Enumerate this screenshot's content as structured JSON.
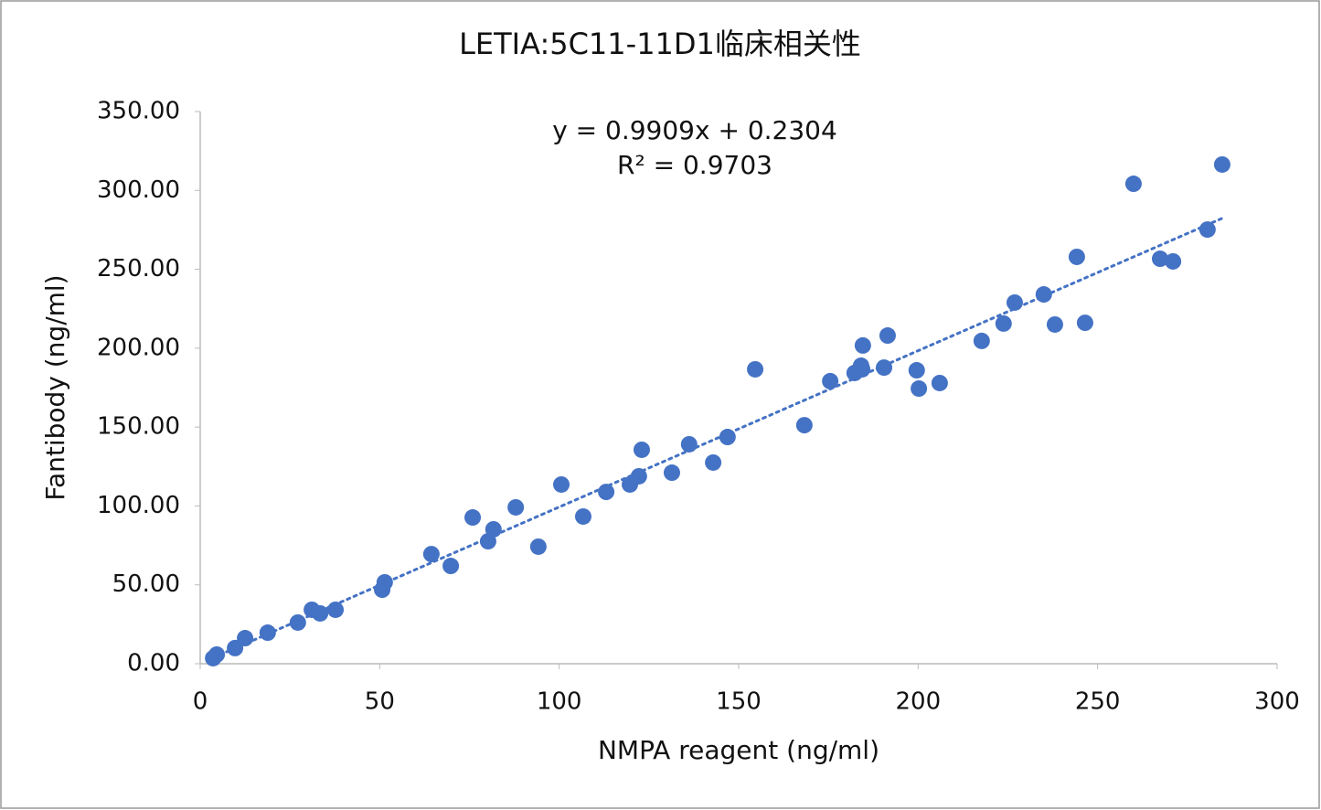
{
  "chart_data": {
    "type": "scatter",
    "title": "LETIA:5C11-11D1临床相关性",
    "x_label": "NMPA reagent (ng/ml)",
    "y_label": "Fantibody (ng/ml)",
    "color": "#4472c4",
    "xlim": [
      0,
      300
    ],
    "xticks": [
      0,
      50,
      100,
      150,
      200,
      250,
      300
    ],
    "ylim": [
      0,
      350
    ],
    "yticks": [
      {
        "value": 0,
        "label": "0.00"
      },
      {
        "value": 50,
        "label": "50.00"
      },
      {
        "value": 100,
        "label": "100.00"
      },
      {
        "value": 150,
        "label": "150.00"
      },
      {
        "value": 200,
        "label": "200.00"
      },
      {
        "value": 250,
        "label": "250.00"
      },
      {
        "value": 300,
        "label": "300.00"
      },
      {
        "value": 350,
        "label": "350.00"
      }
    ],
    "x": [
      3.6,
      4.6,
      9.7,
      12.5,
      18.8,
      27.2,
      31.1,
      33.4,
      37.7,
      50.7,
      51.4,
      64.4,
      69.8,
      75.9,
      80.2,
      81.7,
      87.9,
      94.2,
      100.6,
      106.7,
      113.1,
      119.7,
      122.2,
      123.0,
      131.4,
      136.2,
      142.9,
      146.9,
      154.6,
      168.3,
      175.5,
      182.3,
      184.1,
      184.6,
      184.4,
      190.5,
      191.5,
      199.6,
      200.2,
      206.0,
      217.7,
      223.8,
      226.9,
      235.0,
      238.1,
      244.2,
      246.5,
      260.0,
      267.4,
      271.0,
      280.6,
      284.7
    ],
    "values": [
      3.5,
      5.8,
      9.9,
      16.2,
      19.7,
      26.1,
      34.2,
      31.9,
      34.2,
      46.9,
      51.6,
      69.5,
      62.0,
      92.7,
      77.6,
      85.2,
      99.1,
      74.2,
      113.6,
      93.3,
      108.9,
      113.6,
      118.8,
      135.6,
      121.1,
      139.1,
      127.5,
      143.7,
      186.6,
      151.2,
      179.1,
      184.3,
      188.9,
      201.7,
      186.6,
      187.7,
      208.0,
      186.0,
      174.4,
      177.9,
      204.6,
      215.6,
      228.9,
      234.1,
      215.0,
      257.9,
      216.1,
      304.2,
      256.7,
      255.0,
      275.2,
      316.4
    ],
    "trendline": {
      "slope": 0.9909,
      "intercept": 0.2304,
      "equation": "y = 0.9909x + 0.2304",
      "r_squared": "R² = 0.9703"
    }
  }
}
